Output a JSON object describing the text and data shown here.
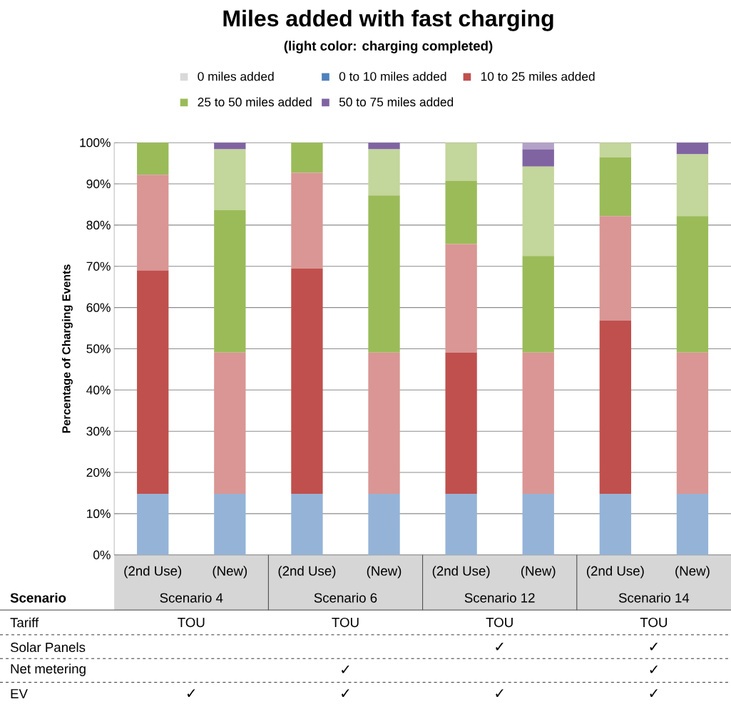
{
  "chart_data": {
    "type": "bar",
    "stacked": true,
    "title": "Miles added with fast charging",
    "subtitle": "(light color: charging completed)",
    "ylabel": "Percentage of Charging Events",
    "categories": [
      "(2nd Use)",
      "(New)",
      "(2nd Use)",
      "(New)",
      "(2nd Use)",
      "(New)",
      "(2nd Use)",
      "(New)"
    ],
    "series": [
      {
        "name": "0 miles added",
        "color": "#d9d9d9",
        "values": [
          0,
          0,
          0,
          0,
          0,
          0,
          0,
          0
        ]
      },
      {
        "name": "0 to 10 miles added",
        "color": "#4f81bd",
        "values": [
          0,
          0,
          0,
          0,
          0,
          0,
          0,
          0
        ]
      },
      {
        "color": "#95b3d7",
        "values": [
          14.8,
          14.8,
          14.8,
          14.8,
          14.8,
          14.8,
          14.8,
          14.8
        ]
      },
      {
        "name": "10 to 25 miles added",
        "color": "#c0504d",
        "values": [
          54.2,
          0,
          54.7,
          0,
          34.3,
          0,
          42.0,
          0
        ]
      },
      {
        "color": "#d99694",
        "values": [
          23.2,
          34.3,
          23.2,
          34.3,
          26.3,
          34.3,
          25.4,
          34.3
        ]
      },
      {
        "name": "25 to 50 miles added",
        "color": "#9bbb59",
        "values": [
          7.8,
          34.5,
          7.3,
          38.1,
          15.3,
          23.4,
          14.2,
          33.1
        ]
      },
      {
        "color": "#c3d69b",
        "values": [
          0,
          14.8,
          0,
          11.2,
          9.3,
          21.7,
          3.6,
          15.0
        ]
      },
      {
        "name": "50 to 75 miles added",
        "color": "#8064a2",
        "values": [
          0,
          1.6,
          0,
          1.6,
          0,
          4.2,
          0,
          2.8
        ]
      },
      {
        "color": "#b3a2c7",
        "values": [
          0,
          0,
          0,
          0,
          0,
          1.6,
          0,
          0
        ]
      }
    ],
    "ylim": [
      0,
      100
    ],
    "yticks": [
      {
        "value": 0,
        "label": "0%"
      },
      {
        "value": 10,
        "label": "10%"
      },
      {
        "value": 20,
        "label": "20%"
      },
      {
        "value": 30,
        "label": "30%"
      },
      {
        "value": 40,
        "label": "40%"
      },
      {
        "value": 50,
        "label": "50%"
      },
      {
        "value": 60,
        "label": "60%"
      },
      {
        "value": 70,
        "label": "70%"
      },
      {
        "value": 80,
        "label": "80%"
      },
      {
        "value": 90,
        "label": "90%"
      },
      {
        "value": 100,
        "label": "100%"
      }
    ],
    "grid": "y",
    "legend": "top",
    "annotations": [
      "Scenario",
      "Scenario 4",
      "Scenario 6",
      "Scenario 12",
      "Scenario 14",
      "Tariff",
      "TOU",
      "TOU",
      "TOU",
      "TOU",
      "Solar Panels",
      "✓",
      "✓",
      "Net metering",
      "✓",
      "✓",
      "EV",
      "✓",
      "✓",
      "✓",
      "✓"
    ]
  }
}
